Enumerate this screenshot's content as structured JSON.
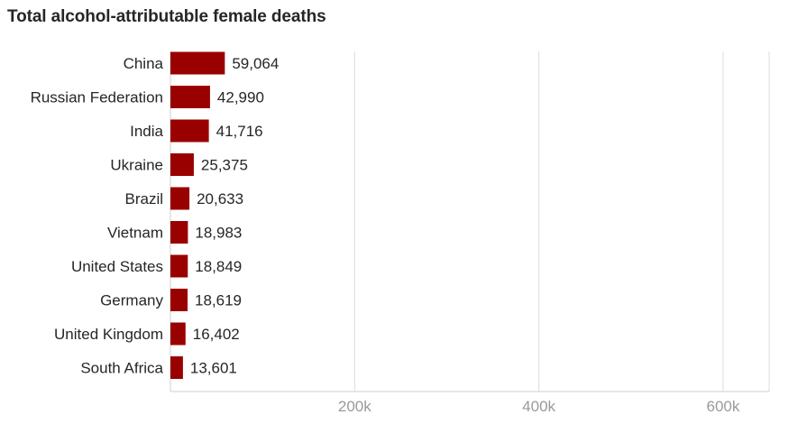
{
  "chart_data": {
    "type": "bar",
    "orientation": "horizontal",
    "title": "Total alcohol-attributable female deaths",
    "categories": [
      "China",
      "Russian Federation",
      "India",
      "Ukraine",
      "Brazil",
      "Vietnam",
      "United States",
      "Germany",
      "United Kingdom",
      "South Africa"
    ],
    "values": [
      59064,
      42990,
      41716,
      25375,
      20633,
      18983,
      18849,
      18619,
      16402,
      13601
    ],
    "value_labels": [
      "59,064",
      "42,990",
      "41,716",
      "25,375",
      "20,633",
      "18,983",
      "18,849",
      "18,619",
      "16,402",
      "13,601"
    ],
    "xlabel": "",
    "ylabel": "",
    "xlim": [
      0,
      650000
    ],
    "x_ticks": [
      200000,
      400000,
      600000
    ],
    "x_tick_labels": [
      "200k",
      "400k",
      "600k"
    ],
    "grid": true,
    "bar_color": "#990000",
    "grid_color": "#dcdcdc"
  }
}
